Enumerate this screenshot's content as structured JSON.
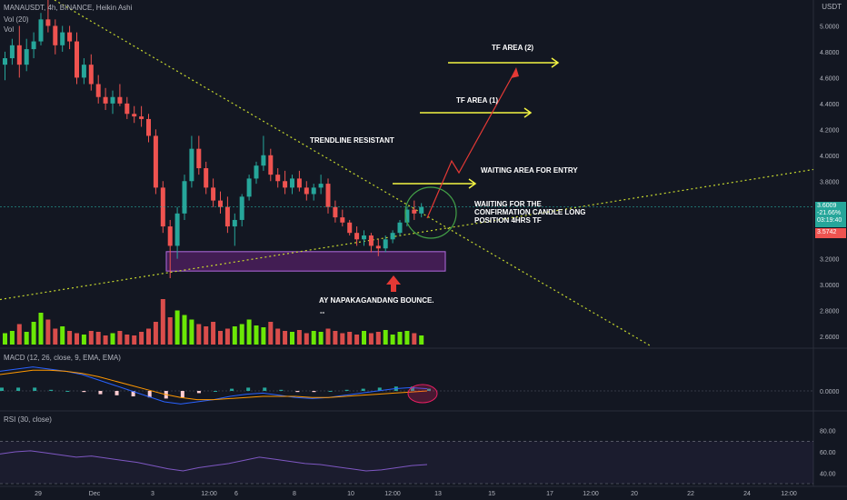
{
  "header": {
    "symbol_line": "MANAUSDT, 4h, BINANCE, Heikin Ashi",
    "vol20": "Vol (20)",
    "vol": "Vol",
    "currency": "USDT"
  },
  "macd_label": "MACD (12, 26, close, 9, EMA, EMA)",
  "rsi_label": "RSI (30, close)",
  "price_tags": {
    "current_price": "3.6009",
    "change": "-21.66%",
    "countdown": "03:19:40",
    "secondary_price": "3.5742"
  },
  "colors": {
    "background": "#131722",
    "bull": "#26a69a",
    "bear": "#ef5350",
    "volume_bull": "#76ff03",
    "volume_bear": "#ef5350",
    "trendline": "#c6d82e",
    "annotation_arrow": "#f5f543",
    "zone": "#9c27b0",
    "macd": "#2962ff",
    "signal": "#ff9800",
    "rsi": "#7e57c2"
  },
  "annotations": {
    "tf_area_2": "TF AREA (2)",
    "tf_area_1": "TF AREA (1)",
    "trendline_resistant": "TRENDLINE RESISTANT",
    "waiting_area": "WAITING AREA FOR ENTRY",
    "confirmation_1": "WAIITING FOR THE",
    "confirmation_2": "CONFIRMATION CANDLE LONG",
    "confirmation_3": "POSITION 4HRS TF",
    "bounce": "AY NAPAKAGANDANG BOUNCE.",
    "bounce_sub": "--"
  },
  "chart_data": [
    {
      "type": "candlestick",
      "title": "MANAUSDT, 4h, BINANCE, Heikin Ashi",
      "x_ticks": [
        "29",
        "Dec",
        "3",
        "12:00",
        "6",
        "8",
        "10",
        "12:00",
        "13",
        "15",
        "17",
        "12:00",
        "20",
        "22",
        "24",
        "12:00"
      ],
      "y_ticks": [
        "2.6000",
        "2.8000",
        "3.0000",
        "3.2000",
        "3.4000",
        "3.6000",
        "3.8000",
        "4.0000",
        "4.2000",
        "4.4000",
        "4.6000",
        "4.8000",
        "5.0000"
      ],
      "ylim": [
        2.53,
        5.2
      ],
      "scale": "linear",
      "last_price": 3.6009,
      "change_pct": -21.66,
      "candles": [
        [
          4.7,
          4.8,
          4.58,
          4.75
        ],
        [
          4.75,
          4.9,
          4.7,
          4.85
        ],
        [
          4.85,
          5.0,
          4.6,
          4.7
        ],
        [
          4.7,
          4.9,
          4.65,
          4.82
        ],
        [
          4.82,
          4.95,
          4.75,
          4.88
        ],
        [
          4.88,
          5.1,
          4.85,
          5.05
        ],
        [
          5.05,
          5.3,
          4.95,
          5.0
        ],
        [
          5.0,
          5.05,
          4.78,
          4.85
        ],
        [
          4.85,
          5.0,
          4.8,
          4.95
        ],
        [
          4.95,
          5.0,
          4.82,
          4.88
        ],
        [
          4.88,
          4.95,
          4.55,
          4.6
        ],
        [
          4.6,
          4.75,
          4.55,
          4.7
        ],
        [
          4.7,
          4.78,
          4.5,
          4.55
        ],
        [
          4.55,
          4.62,
          4.4,
          4.45
        ],
        [
          4.45,
          4.52,
          4.35,
          4.4
        ],
        [
          4.4,
          4.5,
          4.32,
          4.45
        ],
        [
          4.45,
          4.55,
          4.38,
          4.4
        ],
        [
          4.4,
          4.45,
          4.28,
          4.32
        ],
        [
          4.32,
          4.38,
          4.25,
          4.3
        ],
        [
          4.3,
          4.38,
          4.22,
          4.28
        ],
        [
          4.28,
          4.32,
          4.1,
          4.15
        ],
        [
          4.15,
          4.2,
          3.7,
          3.75
        ],
        [
          3.75,
          3.8,
          3.4,
          3.45
        ],
        [
          3.45,
          3.5,
          3.05,
          3.3
        ],
        [
          3.3,
          3.6,
          3.2,
          3.55
        ],
        [
          3.55,
          3.85,
          3.5,
          3.8
        ],
        [
          3.8,
          4.15,
          3.75,
          4.05
        ],
        [
          4.05,
          4.15,
          3.85,
          3.9
        ],
        [
          3.9,
          3.95,
          3.7,
          3.75
        ],
        [
          3.75,
          3.82,
          3.6,
          3.65
        ],
        [
          3.65,
          3.72,
          3.55,
          3.6
        ],
        [
          3.6,
          3.68,
          3.4,
          3.45
        ],
        [
          3.45,
          3.55,
          3.3,
          3.5
        ],
        [
          3.5,
          3.7,
          3.45,
          3.68
        ],
        [
          3.68,
          3.85,
          3.65,
          3.82
        ],
        [
          3.82,
          3.95,
          3.78,
          3.92
        ],
        [
          3.92,
          4.15,
          3.88,
          4.0
        ],
        [
          4.0,
          4.05,
          3.8,
          3.85
        ],
        [
          3.85,
          3.9,
          3.75,
          3.8
        ],
        [
          3.8,
          3.88,
          3.7,
          3.75
        ],
        [
          3.75,
          3.85,
          3.7,
          3.82
        ],
        [
          3.82,
          3.88,
          3.72,
          3.75
        ],
        [
          3.75,
          3.8,
          3.65,
          3.7
        ],
        [
          3.7,
          3.78,
          3.65,
          3.75
        ],
        [
          3.75,
          3.85,
          3.7,
          3.78
        ],
        [
          3.78,
          3.82,
          3.55,
          3.6
        ],
        [
          3.6,
          3.65,
          3.48,
          3.52
        ],
        [
          3.52,
          3.58,
          3.45,
          3.48
        ],
        [
          3.48,
          3.5,
          3.38,
          3.4
        ],
        [
          3.4,
          3.45,
          3.3,
          3.35
        ],
        [
          3.35,
          3.42,
          3.3,
          3.38
        ],
        [
          3.38,
          3.4,
          3.25,
          3.3
        ],
        [
          3.3,
          3.35,
          3.22,
          3.28
        ],
        [
          3.28,
          3.38,
          3.25,
          3.35
        ],
        [
          3.35,
          3.42,
          3.32,
          3.4
        ],
        [
          3.4,
          3.5,
          3.38,
          3.48
        ],
        [
          3.48,
          3.6,
          3.45,
          3.58
        ],
        [
          3.58,
          3.65,
          3.5,
          3.55
        ],
        [
          3.55,
          3.63,
          3.52,
          3.6
        ]
      ]
    },
    {
      "type": "bar",
      "title": "Vol (20)",
      "values": [
        0.25,
        0.3,
        0.45,
        0.28,
        0.5,
        0.7,
        0.55,
        0.35,
        0.4,
        0.3,
        0.25,
        0.22,
        0.3,
        0.28,
        0.2,
        0.25,
        0.3,
        0.22,
        0.2,
        0.28,
        0.35,
        0.5,
        1.0,
        0.6,
        0.75,
        0.65,
        0.55,
        0.45,
        0.4,
        0.5,
        0.3,
        0.35,
        0.4,
        0.45,
        0.55,
        0.42,
        0.38,
        0.5,
        0.35,
        0.3,
        0.28,
        0.32,
        0.25,
        0.3,
        0.28,
        0.35,
        0.3,
        0.25,
        0.28,
        0.22,
        0.3,
        0.25,
        0.28,
        0.32,
        0.22,
        0.28,
        0.3,
        0.25,
        0.2
      ],
      "directions": [
        1,
        1,
        0,
        1,
        1,
        1,
        0,
        0,
        1,
        0,
        0,
        1,
        0,
        0,
        0,
        1,
        0,
        0,
        0,
        0,
        0,
        0,
        0,
        0,
        1,
        1,
        1,
        0,
        0,
        0,
        0,
        0,
        1,
        1,
        1,
        1,
        1,
        0,
        0,
        0,
        1,
        0,
        0,
        1,
        1,
        0,
        0,
        0,
        0,
        0,
        1,
        0,
        0,
        1,
        1,
        1,
        1,
        0,
        1
      ]
    },
    {
      "type": "line",
      "title": "MACD (12, 26, close, 9, EMA, EMA)",
      "y_ticks": [
        "0.0000"
      ],
      "series": [
        {
          "values": [
            0.18,
            0.2,
            0.22,
            0.2,
            0.18,
            0.15,
            0.1,
            0.05,
            0.0,
            -0.05,
            -0.1,
            -0.12,
            -0.1,
            -0.08,
            -0.05,
            -0.03,
            -0.02,
            -0.04,
            -0.06,
            -0.07,
            -0.06,
            -0.04,
            -0.02,
            0.0,
            0.02,
            0.03,
            0.02
          ]
        },
        {
          "values": [
            0.15,
            0.17,
            0.19,
            0.19,
            0.18,
            0.16,
            0.13,
            0.09,
            0.05,
            0.01,
            -0.03,
            -0.06,
            -0.08,
            -0.08,
            -0.07,
            -0.06,
            -0.05,
            -0.05,
            -0.05,
            -0.06,
            -0.06,
            -0.05,
            -0.04,
            -0.03,
            -0.02,
            -0.01,
            0.0
          ]
        }
      ],
      "histogram": [
        0.03,
        0.03,
        0.03,
        0.01,
        0.0,
        -0.01,
        -0.03,
        -0.04,
        -0.05,
        -0.06,
        -0.07,
        -0.06,
        -0.02,
        0.0,
        0.02,
        0.03,
        0.03,
        0.01,
        -0.01,
        -0.01,
        0.0,
        0.01,
        0.02,
        0.03,
        0.04,
        0.04,
        0.02
      ]
    },
    {
      "type": "line",
      "title": "RSI (30, close)",
      "y_ticks": [
        "40.00",
        "60.00",
        "80.00"
      ],
      "ylim": [
        30,
        90
      ],
      "bands": [
        30,
        70
      ],
      "values": [
        58,
        60,
        61,
        59,
        57,
        55,
        56,
        54,
        52,
        50,
        47,
        44,
        42,
        45,
        47,
        49,
        52,
        55,
        53,
        51,
        49,
        48,
        46,
        44,
        42,
        43,
        45,
        47,
        48
      ]
    }
  ]
}
